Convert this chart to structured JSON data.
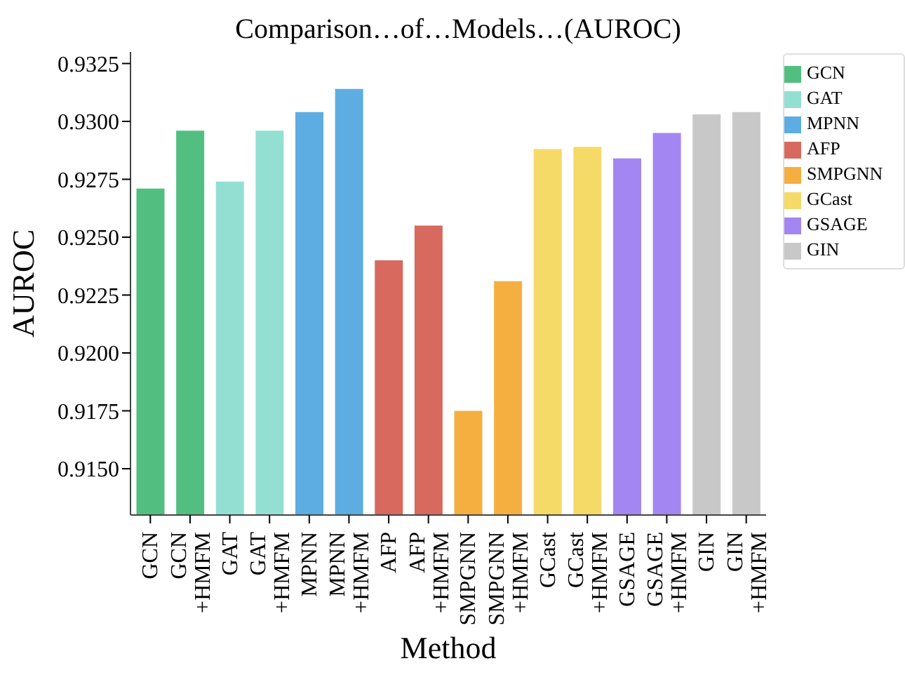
{
  "chart_data": {
    "type": "bar",
    "title": "Comparison…of…Models…(AUROC)",
    "xlabel": "Method",
    "ylabel": "AUROC",
    "categories": [
      "GCN",
      "GCN\n+HMFM",
      "GAT",
      "GAT\n+HMFM",
      "MPNN",
      "MPNN\n+HMFM",
      "AFP",
      "AFP\n+HMFM",
      "SMPGNN",
      "SMPGNN\n+HMFM",
      "GCast",
      "GCast\n+HMFM",
      "GSAGE",
      "GSAGE\n+HMFM",
      "GIN",
      "GIN\n+HMFM"
    ],
    "stacked": true,
    "series": [
      {
        "name": "GCN",
        "color": "#52bf80",
        "values": [
          0.9271,
          0.9296,
          null,
          null,
          null,
          null,
          null,
          null,
          null,
          null,
          null,
          null,
          null,
          null,
          null,
          null
        ]
      },
      {
        "name": "GAT",
        "color": "#93e0d3",
        "values": [
          null,
          null,
          0.9274,
          0.9296,
          null,
          null,
          null,
          null,
          null,
          null,
          null,
          null,
          null,
          null,
          null,
          null
        ]
      },
      {
        "name": "MPNN",
        "color": "#5dade2",
        "values": [
          null,
          null,
          null,
          null,
          0.9304,
          0.9314,
          null,
          null,
          null,
          null,
          null,
          null,
          null,
          null,
          null,
          null
        ]
      },
      {
        "name": "AFP",
        "color": "#d7695f",
        "values": [
          null,
          null,
          null,
          null,
          null,
          null,
          0.924,
          0.9255,
          null,
          null,
          null,
          null,
          null,
          null,
          null,
          null
        ]
      },
      {
        "name": "SMPGNN",
        "color": "#f5af41",
        "values": [
          null,
          null,
          null,
          null,
          null,
          null,
          null,
          null,
          0.9175,
          0.9231,
          null,
          null,
          null,
          null,
          null,
          null
        ]
      },
      {
        "name": "GCast",
        "color": "#f6da68",
        "values": [
          null,
          null,
          null,
          null,
          null,
          null,
          null,
          null,
          null,
          null,
          0.9288,
          0.9289,
          null,
          null,
          null,
          null
        ]
      },
      {
        "name": "GSAGE",
        "color": "#a386f2",
        "values": [
          null,
          null,
          null,
          null,
          null,
          null,
          null,
          null,
          null,
          null,
          null,
          null,
          0.9284,
          0.9295,
          null,
          null
        ]
      },
      {
        "name": "GIN",
        "color": "#c8c8c8",
        "values": [
          null,
          null,
          null,
          null,
          null,
          null,
          null,
          null,
          null,
          null,
          null,
          null,
          null,
          null,
          0.9303,
          0.9304
        ]
      }
    ],
    "ylim": [
      0.913,
      0.933
    ],
    "yticks": [
      {
        "value": 0.915,
        "label": "0.9150"
      },
      {
        "value": 0.9175,
        "label": "0.9175"
      },
      {
        "value": 0.92,
        "label": "0.9200"
      },
      {
        "value": 0.9225,
        "label": "0.9225"
      },
      {
        "value": 0.925,
        "label": "0.9250"
      },
      {
        "value": 0.9275,
        "label": "0.9275"
      },
      {
        "value": 0.93,
        "label": "0.9300"
      },
      {
        "value": 0.9325,
        "label": "0.9325"
      }
    ],
    "legend": "right"
  }
}
